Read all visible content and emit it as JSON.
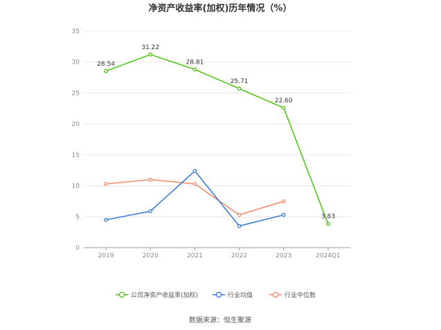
{
  "chart_data": {
    "type": "line",
    "title": "净资产收益率(加权)历年情况（%）",
    "categories": [
      "2019",
      "2020",
      "2021",
      "2022",
      "2023",
      "2024Q1"
    ],
    "ylim": [
      0,
      35
    ],
    "yticks": [
      "0",
      "5",
      "10",
      "15",
      "20",
      "25",
      "30",
      "35"
    ],
    "grid": true,
    "legend_position": "bottom",
    "series": [
      {
        "name": "公司净资产收益率(加权)",
        "color": "#52c41a",
        "values": [
          28.54,
          31.22,
          28.81,
          25.71,
          22.6,
          3.83
        ],
        "labels": [
          "28.54",
          "31.22",
          "28.81",
          "25.71",
          "22.60",
          "3.83"
        ]
      },
      {
        "name": "行业均值",
        "color": "#3a7bd5",
        "values": [
          4.5,
          5.9,
          12.4,
          3.5,
          5.3,
          null
        ]
      },
      {
        "name": "行业中位数",
        "color": "#f08c6c",
        "values": [
          10.3,
          11.0,
          10.3,
          5.3,
          7.5,
          null
        ]
      }
    ]
  },
  "source": "数据来源：恒生聚源"
}
